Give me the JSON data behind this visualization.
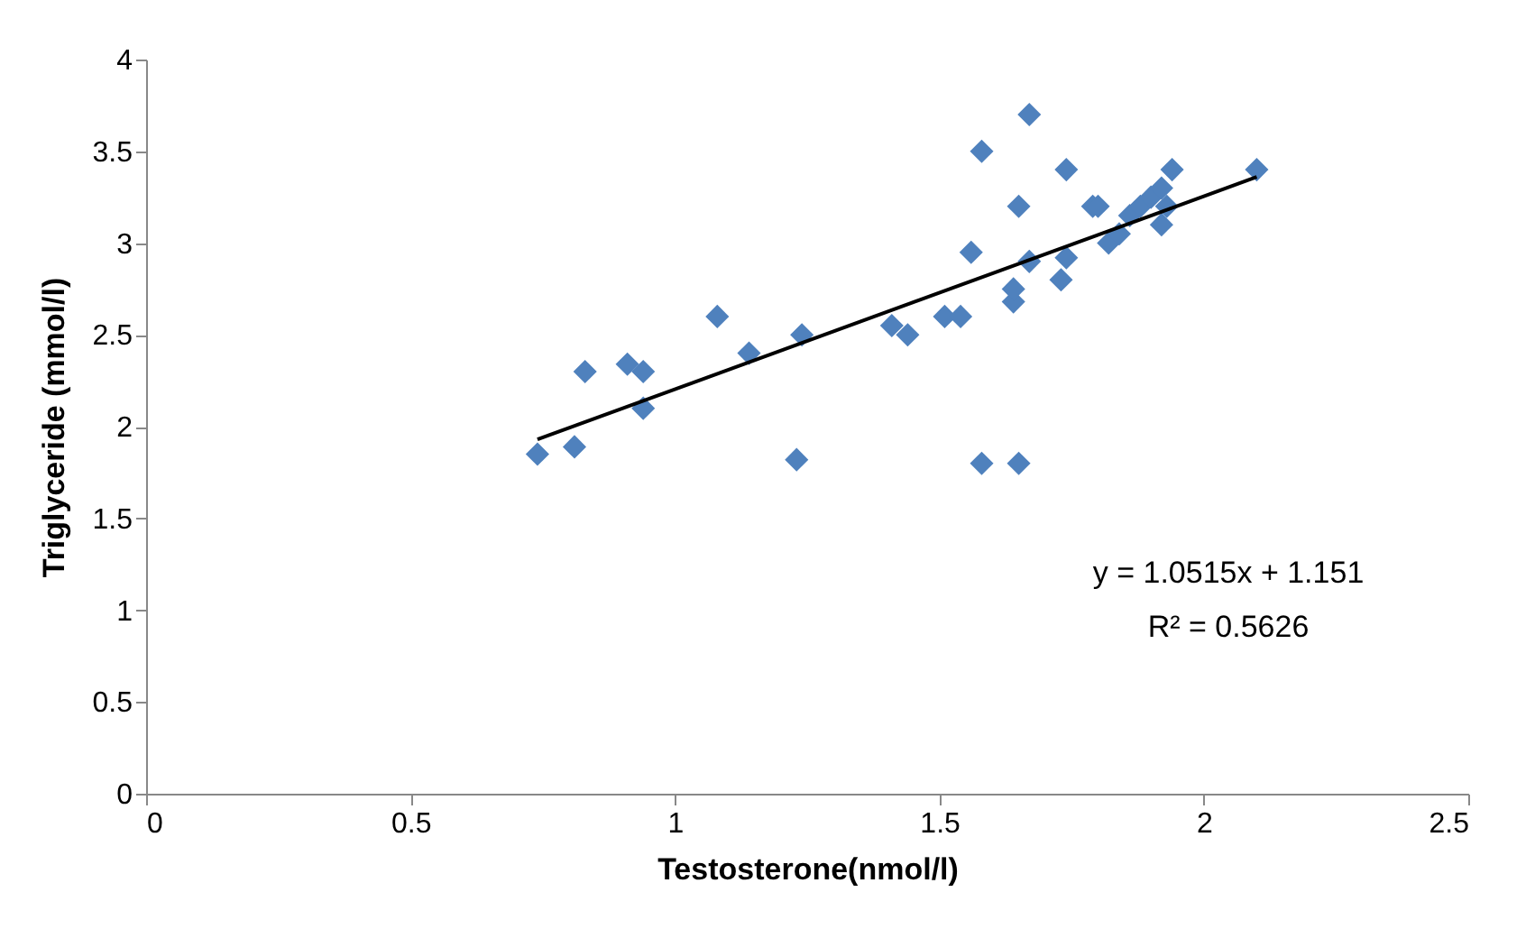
{
  "chart_data": {
    "type": "scatter",
    "xlabel": "Testosterone(nmol/l)",
    "ylabel": "Triglyceride (mmol/l)",
    "xlim": [
      0,
      2.5
    ],
    "xticks": [
      0,
      0.5,
      1,
      1.5,
      2,
      2.5
    ],
    "ylim": [
      0,
      4
    ],
    "yticks": [
      0,
      0.5,
      1,
      1.5,
      2,
      2.5,
      3,
      3.5,
      4
    ],
    "grid": false,
    "legend": false,
    "marker": "diamond",
    "annotations": [
      "y = 1.0515x + 1.151",
      "R² = 0.5626"
    ],
    "series": [
      {
        "color": "#4f81bd",
        "x": [
          0.74,
          0.81,
          0.83,
          0.91,
          0.94,
          0.94,
          1.08,
          1.14,
          1.23,
          1.24,
          1.41,
          1.44,
          1.51,
          1.54,
          1.56,
          1.58,
          1.58,
          1.64,
          1.64,
          1.65,
          1.65,
          1.67,
          1.67,
          1.73,
          1.74,
          1.74,
          1.79,
          1.8,
          1.82,
          1.84,
          1.86,
          1.88,
          1.9,
          1.92,
          1.92,
          1.93,
          1.94,
          2.1
        ],
        "values": [
          1.85,
          1.89,
          2.3,
          2.34,
          2.3,
          2.1,
          2.6,
          2.4,
          1.82,
          2.5,
          2.55,
          2.5,
          2.6,
          2.6,
          2.95,
          3.5,
          1.8,
          2.68,
          2.75,
          3.2,
          1.8,
          3.7,
          2.9,
          2.8,
          3.4,
          2.92,
          3.2,
          3.2,
          3.0,
          3.05,
          3.15,
          3.2,
          3.25,
          3.1,
          3.3,
          3.2,
          3.4,
          3.4
        ]
      },
      {
        "type": "line",
        "color": "#000000",
        "marker": "none",
        "line_style": "solid",
        "x": [
          0.74,
          2.1
        ],
        "values": [
          1.93,
          3.36
        ]
      }
    ]
  }
}
